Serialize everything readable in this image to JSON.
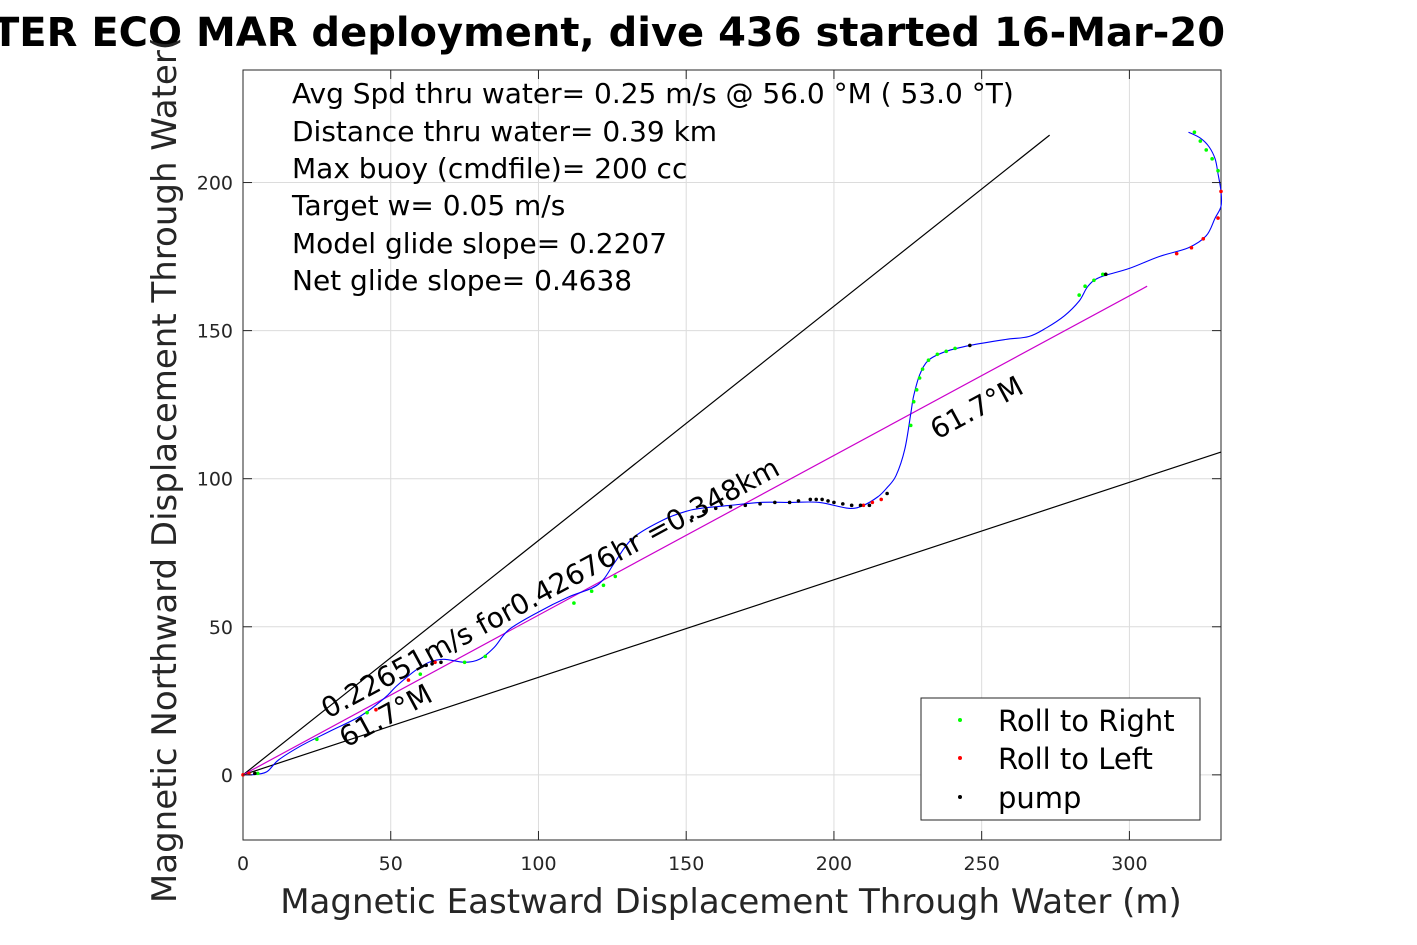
{
  "chart_data": {
    "type": "line",
    "title": "TER ECO MAR deployment, dive 436 started 16-Mar-20",
    "xlabel": "Magnetic Eastward Displacement Through Water (m)",
    "ylabel": "Magnetic Northward Displacement Through Water(",
    "xlim": [
      0,
      331
    ],
    "ylim": [
      -22,
      238
    ],
    "xticks": [
      0,
      50,
      100,
      150,
      200,
      250,
      300
    ],
    "yticks": [
      0,
      50,
      100,
      150,
      200
    ],
    "xtick_labels": [
      "0",
      "50",
      "100",
      "150",
      "200",
      "250",
      "300"
    ],
    "ytick_labels": [
      "0",
      "50",
      "100",
      "150",
      "200"
    ],
    "grid": true,
    "annotations": [
      "Avg Spd thru water=  0.25 m/s @  56.0 °M ( 53.0 °T)",
      "Distance thru water=  0.39 km",
      "Max buoy (cmdfile)= 200 cc",
      "Target w= 0.05 m/s",
      "Model glide slope= 0.2207",
      "Net glide slope= 0.4638"
    ],
    "line_labels": {
      "speed_label": "0.22651m/s for0.42676hr =0.348km",
      "heading_label_1": "61.7°M",
      "heading_label_2": "61.7°M"
    },
    "legend": {
      "placement": "bottom-right",
      "entries": [
        "Roll to Right",
        "Roll to Left",
        "pump"
      ]
    },
    "reference_lines": [
      {
        "name": "upper-cone",
        "x": [
          0,
          273
        ],
        "y": [
          0,
          216
        ]
      },
      {
        "name": "lower-cone",
        "x": [
          0,
          331
        ],
        "y": [
          0,
          109
        ]
      },
      {
        "name": "mean-heading",
        "x": [
          0,
          306
        ],
        "y": [
          0,
          165
        ]
      }
    ],
    "track": {
      "x": [
        0,
        3,
        8,
        12,
        20,
        30,
        40,
        48,
        52,
        58,
        63,
        68,
        75,
        80,
        85,
        90,
        100,
        110,
        118,
        122,
        126,
        132,
        142,
        150,
        155,
        165,
        175,
        185,
        195,
        205,
        210,
        215,
        218,
        221,
        224,
        226,
        227,
        229,
        232,
        238,
        246,
        258,
        266,
        272,
        278,
        283,
        286,
        290,
        300,
        310,
        320,
        326,
        329,
        331,
        331,
        330,
        329,
        327,
        324,
        320
      ],
      "y": [
        0,
        0,
        1,
        5,
        10,
        15,
        20,
        26,
        30,
        35,
        38,
        39,
        38,
        39,
        43,
        49,
        55,
        60,
        63,
        66,
        72,
        80,
        86,
        89,
        90,
        91,
        92,
        92,
        92,
        90,
        91,
        94,
        97,
        101,
        110,
        122,
        128,
        135,
        140,
        143,
        145,
        147,
        148,
        151,
        155,
        160,
        165,
        168,
        171,
        175,
        178,
        182,
        188,
        192,
        197,
        203,
        208,
        212,
        215,
        217
      ]
    },
    "colors": {
      "track": "#0000ff",
      "mean_heading": "#cc00cc",
      "reference": "#000000",
      "roll_right": "#00ff00",
      "roll_left": "#ff0000",
      "pump": "#000000"
    },
    "series": [
      {
        "name": "Roll to Right",
        "x": [
          5,
          25,
          42,
          60,
          75,
          82,
          112,
          118,
          122,
          126,
          226,
          227,
          228,
          229,
          230,
          232,
          235,
          238,
          241,
          283,
          285,
          288,
          291,
          322,
          324,
          326,
          328,
          330
        ],
        "y": [
          0.5,
          12,
          21,
          34,
          38,
          40,
          58,
          62,
          64,
          67,
          118,
          126,
          130,
          134,
          137,
          140,
          142,
          143,
          144,
          162,
          165,
          167,
          169,
          217,
          214,
          211,
          208,
          204
        ]
      },
      {
        "name": "Roll to Left",
        "x": [
          0,
          2,
          45,
          56,
          65,
          210,
          213,
          216,
          316,
          321,
          325,
          330,
          331
        ],
        "y": [
          0,
          0.5,
          22,
          32,
          38,
          91,
          92,
          93,
          176,
          178,
          181,
          188,
          197
        ]
      },
      {
        "name": "pump",
        "x": [
          4,
          62,
          64,
          67,
          152,
          156,
          160,
          165,
          170,
          175,
          180,
          185,
          188,
          192,
          194,
          196,
          198,
          200,
          203,
          206,
          209,
          212,
          218,
          246,
          292
        ],
        "y": [
          0.5,
          37,
          37.5,
          38,
          87,
          89,
          90,
          90.5,
          91,
          91.5,
          92,
          92,
          92.5,
          93,
          93,
          93,
          92.5,
          92,
          91.5,
          91,
          91,
          91,
          95,
          145,
          169
        ]
      }
    ]
  }
}
